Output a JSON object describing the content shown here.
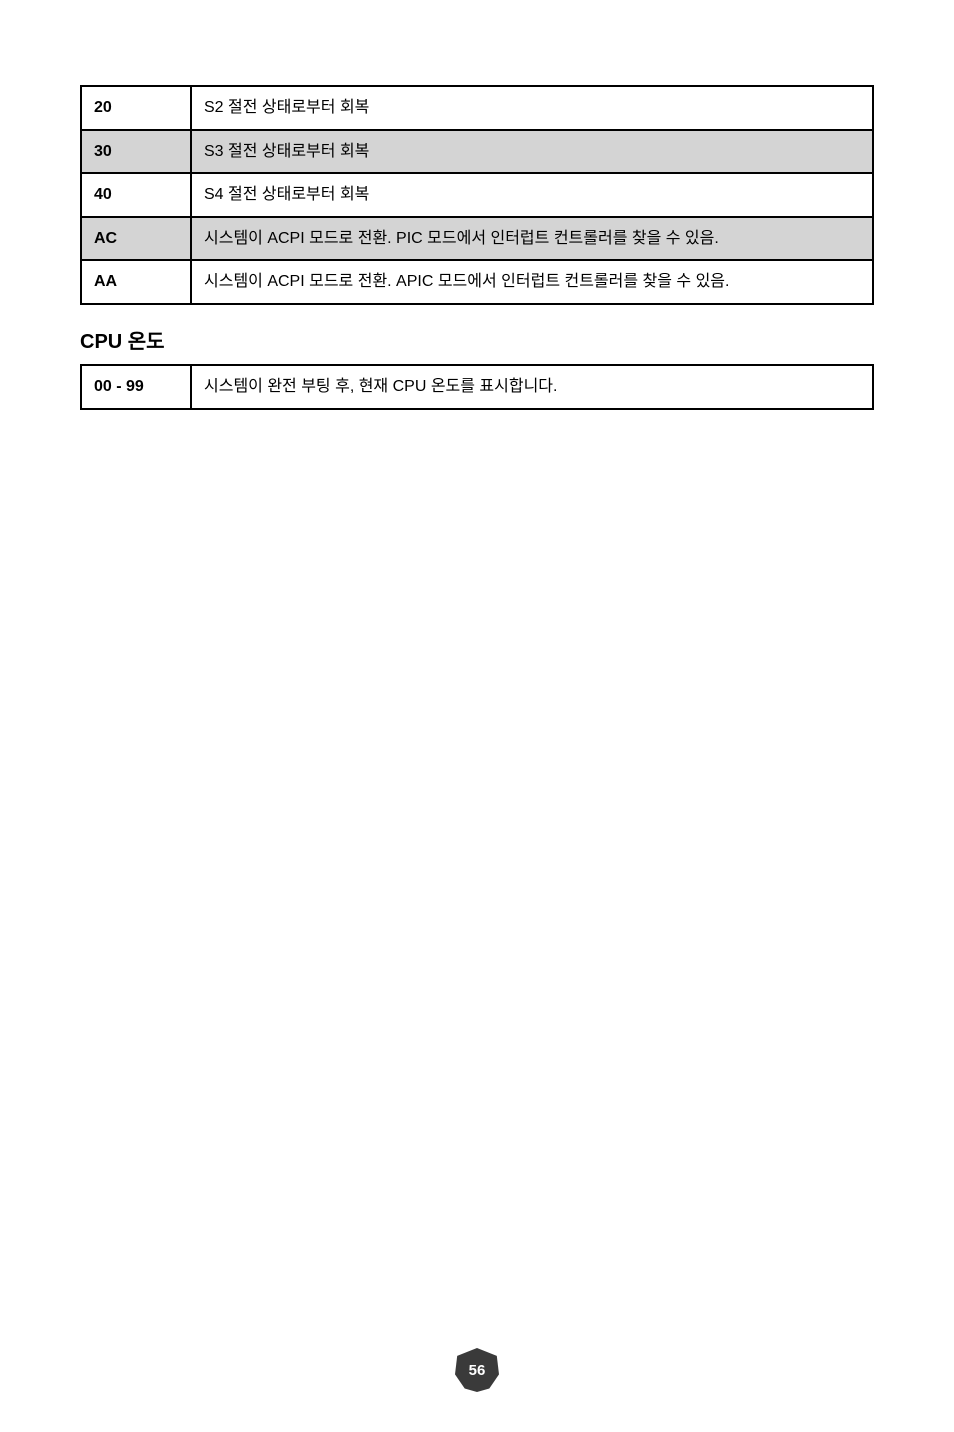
{
  "table1": {
    "rows": [
      {
        "code": "20",
        "desc": "S2 절전 상태로부터 회복",
        "shaded": false
      },
      {
        "code": "30",
        "desc": "S3 절전 상태로부터 회복",
        "shaded": true
      },
      {
        "code": "40",
        "desc": "S4 절전 상태로부터 회복",
        "shaded": false
      },
      {
        "code": "AC",
        "desc": "시스템이 ACPI 모드로 전환.   PIC 모드에서 인터럽트 컨트롤러를 찾을 수 있음.",
        "shaded": true
      },
      {
        "code": "AA",
        "desc": "시스템이 ACPI 모드로 전환.   APIC 모드에서 인터럽트 컨트롤러를 찾을 수 있음.",
        "shaded": false
      }
    ]
  },
  "section_heading": "CPU 온도",
  "table2": {
    "rows": [
      {
        "code": "00 - 99",
        "desc": "시스템이 완전 부팅 후, 현재 CPU 온도를 표시합니다."
      }
    ]
  },
  "page_number": "56"
}
